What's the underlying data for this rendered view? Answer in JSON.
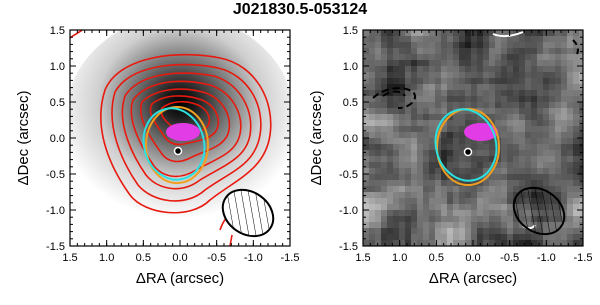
{
  "title": "J021830.5-053124",
  "chart_data": [
    {
      "type": "image",
      "xlabel": "ΔRA (arcsec)",
      "ylabel": "ΔDec (arcsec)",
      "xlim": [
        1.5,
        -1.5
      ],
      "ylim": [
        -1.5,
        1.5
      ],
      "xticks": [
        1.5,
        {
          "value": 1,
          "label": "1.0"
        },
        0.5,
        {
          "value": 0,
          "label": "0.0"
        },
        -0.5,
        {
          "value": -1,
          "label": "-1.0"
        },
        -1.5
      ],
      "yticks": [
        -1.5,
        {
          "value": -1,
          "label": "-1.0"
        },
        -0.5,
        {
          "value": 0,
          "label": "0.0"
        },
        0.5,
        {
          "value": 1,
          "label": "1.0"
        },
        1.5
      ]
    },
    {
      "type": "image",
      "xlabel": "ΔRA (arcsec)",
      "ylabel": "ΔDec (arcsec)",
      "xlim": [
        1.5,
        -1.5
      ],
      "ylim": [
        -1.5,
        1.5
      ],
      "xticks": [
        1.5,
        {
          "value": 1,
          "label": "1.0"
        },
        0.5,
        {
          "value": 0,
          "label": "0.0"
        },
        -0.5,
        {
          "value": -1,
          "label": "-1.0"
        },
        -1.5
      ],
      "yticks": [
        -1.5,
        {
          "value": -1,
          "label": "-1.0"
        },
        -0.5,
        {
          "value": 0,
          "label": "0.0"
        },
        0.5,
        {
          "value": 1,
          "label": "1.0"
        },
        1.5
      ]
    }
  ]
}
